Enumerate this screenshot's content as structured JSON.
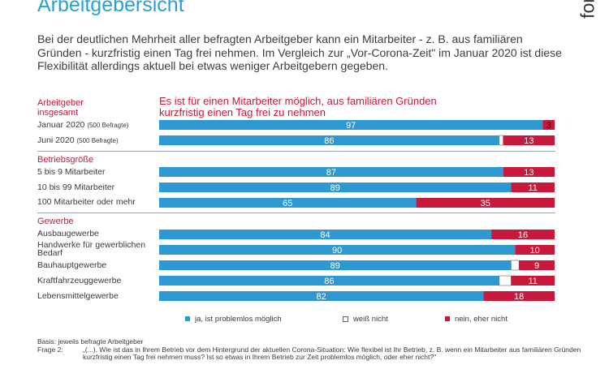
{
  "header": {
    "title": "Arbeitgebersicht",
    "logo_text": "for",
    "intro": "Bei der deutlichen Mehrheit aller befragten Arbeitgeber kann ein Mitarbeiter - z. B. aus familiären Gründen - kurzfristig einen Tag frei nehmen. Im Vergleich zur „Vor-Corona-Zeit\" im Januar 2020 ist diese Flexibilität allerdings aktuell bei etwas weniger Arbeitgebern gegeben."
  },
  "chart_data": {
    "type": "bar",
    "orientation": "horizontal",
    "stacked": true,
    "title": "Es ist für einen Mitarbeiter möglich, aus familiären Gründen kurzfristig einen Tag frei zu nehmen",
    "xlim": [
      0,
      100
    ],
    "sections": [
      {
        "label": "Arbeitgeber insgesamt",
        "rows": [
          {
            "label": "Januar 2020",
            "note": "(500 Befragte)",
            "ja": 97,
            "weiss_nicht": 0,
            "nein": 3
          },
          {
            "label": "Juni 2020",
            "note": "(500 Befragte)",
            "ja": 86,
            "weiss_nicht": 1,
            "nein": 13
          }
        ]
      },
      {
        "label": "Betriebsgröße",
        "rows": [
          {
            "label": "5 bis 9 Mitarbeiter",
            "ja": 87,
            "weiss_nicht": 0,
            "nein": 13
          },
          {
            "label": "10 bis 99 Mitarbeiter",
            "ja": 89,
            "weiss_nicht": 0,
            "nein": 11
          },
          {
            "label": "100 Mitarbeiter oder mehr",
            "ja": 65,
            "weiss_nicht": 0,
            "nein": 35
          }
        ]
      },
      {
        "label": "Gewerbe",
        "rows": [
          {
            "label": "Ausbaugewerbe",
            "ja": 84,
            "weiss_nicht": 0,
            "nein": 16
          },
          {
            "label": "Handwerke für gewerblichen Bedarf",
            "ja": 90,
            "weiss_nicht": 0,
            "nein": 10
          },
          {
            "label": "Bauhauptgewerbe",
            "ja": 89,
            "weiss_nicht": 2,
            "nein": 9
          },
          {
            "label": "Kraftfahrzeuggewerbe",
            "ja": 86,
            "weiss_nicht": 3,
            "nein": 11
          },
          {
            "label": "Lebensmittelgewerbe",
            "ja": 82,
            "weiss_nicht": 0,
            "nein": 18
          }
        ]
      }
    ],
    "series": [
      {
        "key": "ja",
        "name": "ja, ist problemlos möglich",
        "color": "#2e98d3"
      },
      {
        "key": "weiss_nicht",
        "name": "weiß nicht",
        "color": "#ffffff"
      },
      {
        "key": "nein",
        "name": "nein, eher nicht",
        "color": "#c8193c"
      }
    ]
  },
  "footer": {
    "basis": "Basis: jeweils befragte Arbeitgeber",
    "frage_label": "Frage 2:",
    "frage_text": "„(...). Wie ist das in Ihrem Betrieb vor dem Hintergrund der aktuellen Corona-Situation: Wie flexibel ist Ihr Betrieb, z. B. wenn ein Mitarbeiter aus familiären Gründen kurzfristig einen Tag frei nehmen muss? Ist so etwas in Ihrem Betrieb zur Zeit problemlos möglich, oder eher nicht?\""
  }
}
